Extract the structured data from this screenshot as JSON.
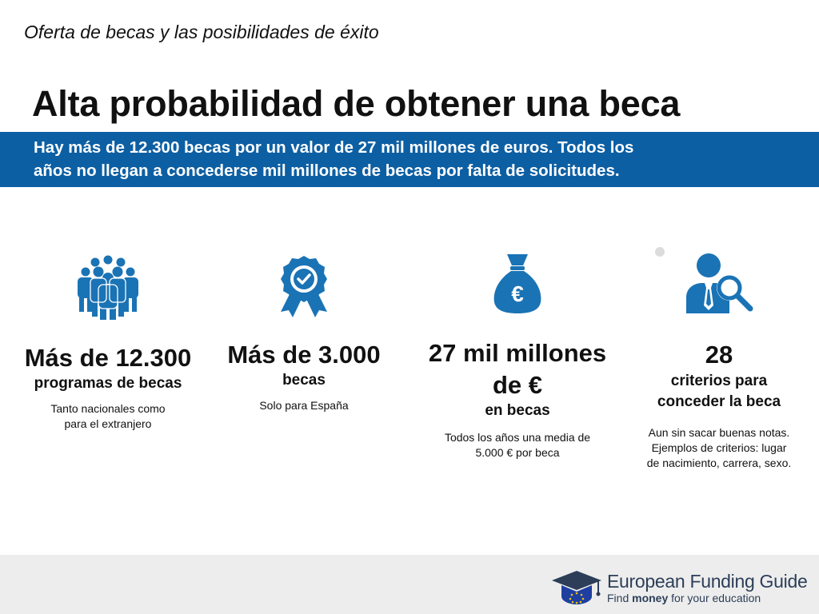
{
  "header": {
    "subtitle": "Oferta de becas y las posibilidades de éxito",
    "title": "Alta probabilidad de obtener una beca"
  },
  "banner": {
    "text_line1": "Hay más de 12.300 becas por un valor de 27 mil millones de euros.  Todos los",
    "text_line2": "años no llegan a concederse mil millones de becas por falta de solicitudes."
  },
  "stats": [
    {
      "icon": "people-group-icon",
      "big": "Más de 12.300",
      "mid": "programas de becas",
      "small_line1": "Tanto nacionales como",
      "small_line2": "para el extranjero"
    },
    {
      "icon": "award-badge-icon",
      "big": "Más de 3.000",
      "mid": "becas",
      "small_line1": "Solo para España"
    },
    {
      "icon": "euro-money-bag-icon",
      "big_line1": "27 mil millones",
      "big_line2": "de €",
      "mid": "en becas",
      "small_line1": "Todos los años una media de",
      "small_line2": "5.000 € por beca"
    },
    {
      "icon": "person-search-icon",
      "big": "28",
      "mid_line1": "criterios para",
      "mid_line2": "conceder la beca",
      "small_line1": "Aun sin sacar buenas notas.",
      "small_line2": "Ejemplos de criterios: lugar",
      "small_line3": "de nacimiento, carrera, sexo."
    }
  ],
  "footer": {
    "brand_part1": "European",
    "brand_part2": "Funding Guide",
    "tagline_part1": "Find",
    "tagline_bold": "money",
    "tagline_part2": "for your education"
  },
  "colors": {
    "accent": "#0d5fa3",
    "icon": "#1a73b5",
    "footer_bg": "#ededed"
  }
}
